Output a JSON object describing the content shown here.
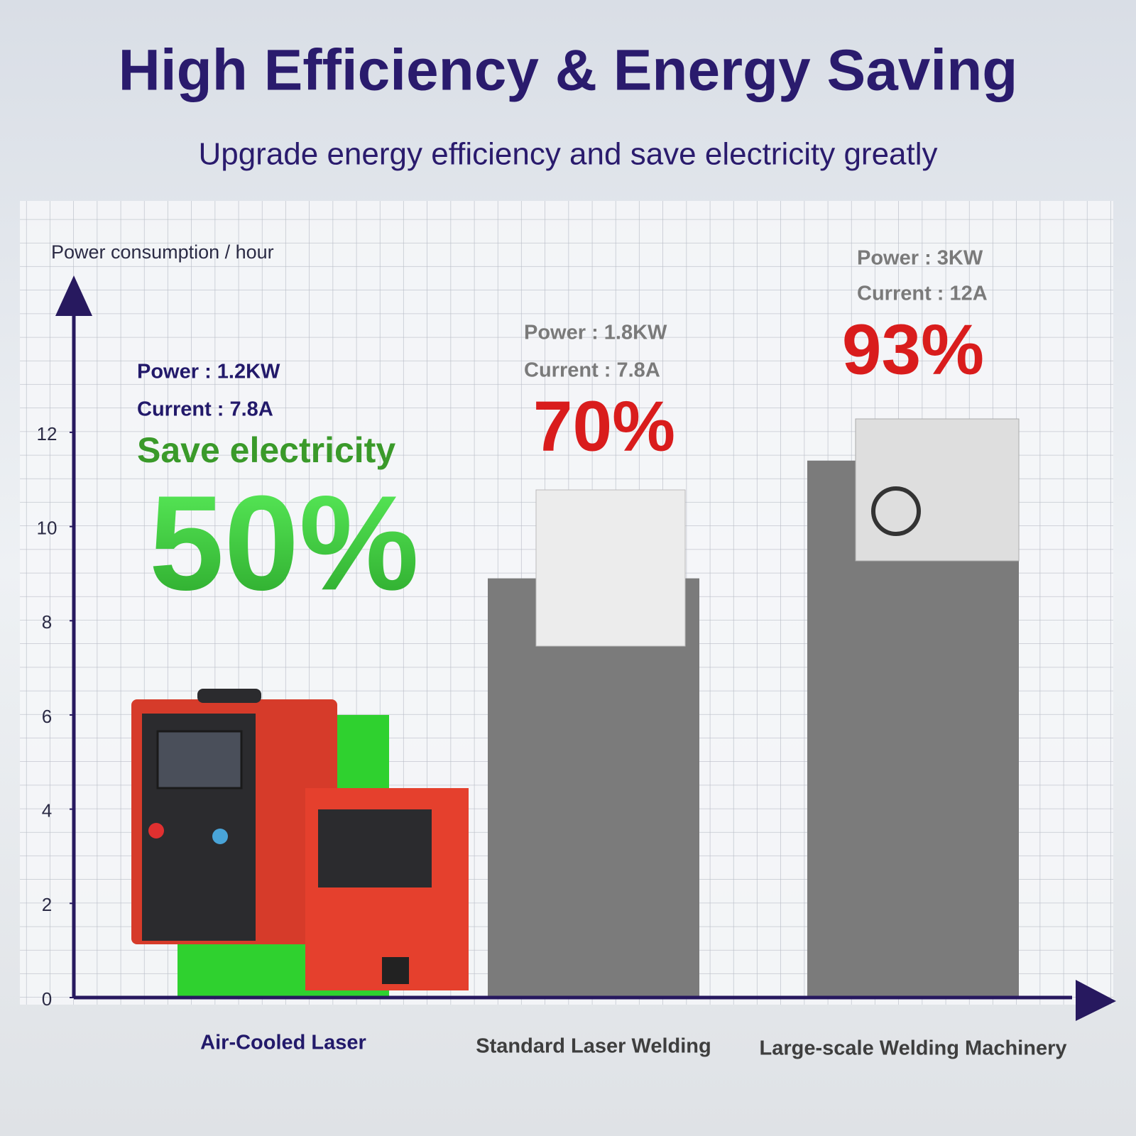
{
  "chart_data": {
    "type": "bar",
    "title": "High Efficiency & Energy Saving",
    "subtitle": "Upgrade energy efficiency and save electricity greatly",
    "y_axis_label": "Power consumption / hour",
    "categories": [
      "Air-Cooled Laser",
      "Standard Laser Welding",
      "Large-scale Welding Machinery"
    ],
    "values": [
      6,
      8.9,
      11.4
    ],
    "colors": [
      "#2fd12f",
      "#7b7b7b",
      "#7b7b7b"
    ],
    "ylim": [
      0,
      15.3
    ],
    "yticks": [
      0,
      2,
      4,
      6,
      8,
      10,
      12
    ],
    "annotations": [
      {
        "power": "Power : 1.2KW",
        "current": "Current : 7.8A",
        "note": "Save electricity",
        "percent": "50%"
      },
      {
        "power": "Power : 1.8KW",
        "current": "Current : 7.8A",
        "percent": "70%"
      },
      {
        "power": "Power : 3KW",
        "current": "Current : 12A",
        "percent": "93%"
      }
    ]
  }
}
